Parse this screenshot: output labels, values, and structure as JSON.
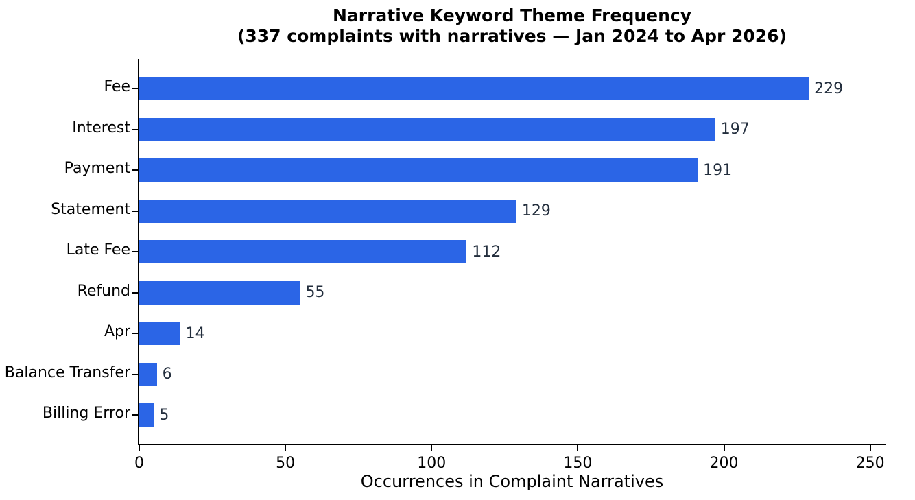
{
  "chart_data": {
    "type": "bar",
    "orientation": "horizontal",
    "title": "Narrative Keyword Theme Frequency",
    "subtitle": "(337 complaints with narratives — Jan 2024 to Apr 2026)",
    "categories": [
      "Fee",
      "Interest",
      "Payment",
      "Statement",
      "Late Fee",
      "Refund",
      "Apr",
      "Balance Transfer",
      "Billing Error"
    ],
    "values": [
      229,
      197,
      191,
      129,
      112,
      55,
      14,
      6,
      5
    ],
    "xlabel": "Occurrences in Complaint Narratives",
    "ylabel": "",
    "xlim": [
      0,
      255
    ],
    "xticks": [
      0,
      50,
      100,
      150,
      200,
      250
    ],
    "grid": false,
    "legend": "none",
    "colors": {
      "bar": "#2b65e6",
      "value_label": "#232e3d",
      "axis_text": "#000000",
      "background": "#ffffff"
    }
  }
}
